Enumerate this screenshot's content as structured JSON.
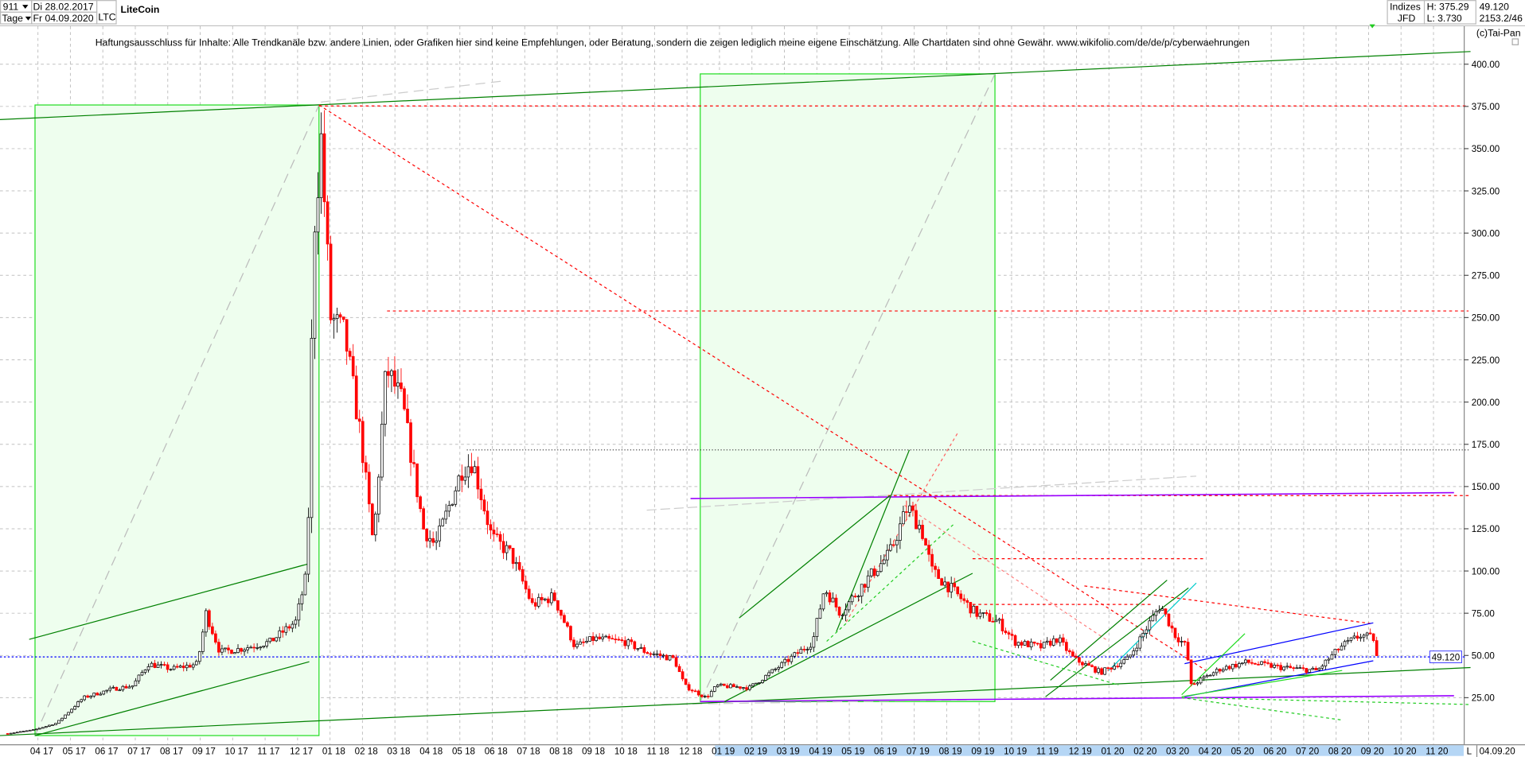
{
  "header": {
    "count": "911",
    "count_dropdown_icon": "caret-down-icon",
    "period": "Tage",
    "period_dropdown_icon": "caret-down-icon",
    "date_from": "Di 28.02.2017",
    "date_to": "Fr 04.09.2020",
    "symbol": "LTC",
    "title": "LiteCoin",
    "index_label": "Indizes",
    "source": "JFD",
    "high": "H: 375.29",
    "low": "L: 3.730",
    "last": "49.120",
    "info": "2153.2/46",
    "copyright": "(c)Tai-Pan"
  },
  "disclaimer": "Haftungsausschluss für Inhalte: Alle Trendkanäle bzw. andere Linien, oder Grafiken hier sind keine Empfehlungen, oder Beratung, sondern die zeigen lediglich meine eigene Einschätzung. Alle Chartdaten sind ohne Gewähr.  www.wikifolio.com/de/de/p/cyberwaehrungen",
  "footer": {
    "mode": "L",
    "date": "04.09.20"
  },
  "colors": {
    "up": "#000000",
    "down": "#ff0000",
    "rect_fill": "#eefeee",
    "rect_stroke": "#22dd22",
    "trend": "#008000",
    "purple": "#9900ff",
    "blue": "#0000ff"
  },
  "chart_data": {
    "type": "candlestick",
    "title": "LiteCoin",
    "ylim": [
      0,
      410
    ],
    "y_ticks": [
      "400.00",
      "375.00",
      "350.00",
      "325.00",
      "300.00",
      "275.00",
      "250.00",
      "225.00",
      "200.00",
      "175.00",
      "150.00",
      "125.00",
      "100.00",
      "75.00",
      "50.00",
      "25.00"
    ],
    "x_ticks": [
      "04 17",
      "05 17",
      "06 17",
      "07 17",
      "08 17",
      "09 17",
      "10 17",
      "11 17",
      "12 17",
      "01 18",
      "02 18",
      "03 18",
      "04 18",
      "05 18",
      "06 18",
      "07 18",
      "08 18",
      "09 18",
      "10 18",
      "11 18",
      "12 18",
      "01 19",
      "02 19",
      "03 19",
      "04 19",
      "05 19",
      "06 19",
      "07 19",
      "08 19",
      "09 19",
      "10 19",
      "11 19",
      "12 19",
      "01 20",
      "02 20",
      "03 20",
      "04 20",
      "05 20",
      "06 20",
      "07 20",
      "08 20",
      "09 20",
      "10 20",
      "11 20"
    ],
    "current_price_label": "49.120",
    "grid": true,
    "approx_prices": [
      [
        "2017-02-28",
        3.8
      ],
      [
        "2017-03-25",
        6
      ],
      [
        "2017-04-15",
        10
      ],
      [
        "2017-05-10",
        25
      ],
      [
        "2017-06-05",
        30
      ],
      [
        "2017-06-25",
        32
      ],
      [
        "2017-07-10",
        45
      ],
      [
        "2017-08-01",
        42
      ],
      [
        "2017-08-25",
        45
      ],
      [
        "2017-09-02",
        75
      ],
      [
        "2017-09-15",
        52
      ],
      [
        "2017-10-05",
        54
      ],
      [
        "2017-11-01",
        58
      ],
      [
        "2017-11-25",
        70
      ],
      [
        "2017-12-06",
        100
      ],
      [
        "2017-12-12",
        300
      ],
      [
        "2017-12-19",
        355
      ],
      [
        "2017-12-28",
        250
      ],
      [
        "2018-01-10",
        240
      ],
      [
        "2018-01-25",
        180
      ],
      [
        "2018-02-06",
        115
      ],
      [
        "2018-02-18",
        220
      ],
      [
        "2018-03-05",
        200
      ],
      [
        "2018-03-25",
        125
      ],
      [
        "2018-04-05",
        115
      ],
      [
        "2018-04-30",
        160
      ],
      [
        "2018-05-10",
        165
      ],
      [
        "2018-05-28",
        120
      ],
      [
        "2018-06-15",
        110
      ],
      [
        "2018-07-05",
        80
      ],
      [
        "2018-07-25",
        85
      ],
      [
        "2018-08-14",
        55
      ],
      [
        "2018-09-01",
        60
      ],
      [
        "2018-09-30",
        58
      ],
      [
        "2018-10-20",
        52
      ],
      [
        "2018-11-15",
        48
      ],
      [
        "2018-11-25",
        32
      ],
      [
        "2018-12-15",
        25
      ],
      [
        "2018-12-25",
        32
      ],
      [
        "2019-01-25",
        31
      ],
      [
        "2019-02-25",
        45
      ],
      [
        "2019-03-25",
        58
      ],
      [
        "2019-04-05",
        90
      ],
      [
        "2019-04-20",
        75
      ],
      [
        "2019-05-15",
        95
      ],
      [
        "2019-06-05",
        110
      ],
      [
        "2019-06-22",
        138
      ],
      [
        "2019-07-05",
        125
      ],
      [
        "2019-07-15",
        100
      ],
      [
        "2019-08-01",
        90
      ],
      [
        "2019-08-25",
        75
      ],
      [
        "2019-09-15",
        70
      ],
      [
        "2019-10-01",
        58
      ],
      [
        "2019-10-25",
        55
      ],
      [
        "2019-11-10",
        60
      ],
      [
        "2019-11-25",
        48
      ],
      [
        "2019-12-20",
        40
      ],
      [
        "2020-01-15",
        48
      ],
      [
        "2020-02-14",
        80
      ],
      [
        "2020-02-28",
        62
      ],
      [
        "2020-03-10",
        55
      ],
      [
        "2020-03-13",
        32
      ],
      [
        "2020-04-10",
        42
      ],
      [
        "2020-05-05",
        46
      ],
      [
        "2020-06-05",
        43
      ],
      [
        "2020-07-10",
        41
      ],
      [
        "2020-08-01",
        55
      ],
      [
        "2020-08-20",
        62
      ],
      [
        "2020-09-02",
        60
      ],
      [
        "2020-09-04",
        49.12
      ]
    ]
  }
}
